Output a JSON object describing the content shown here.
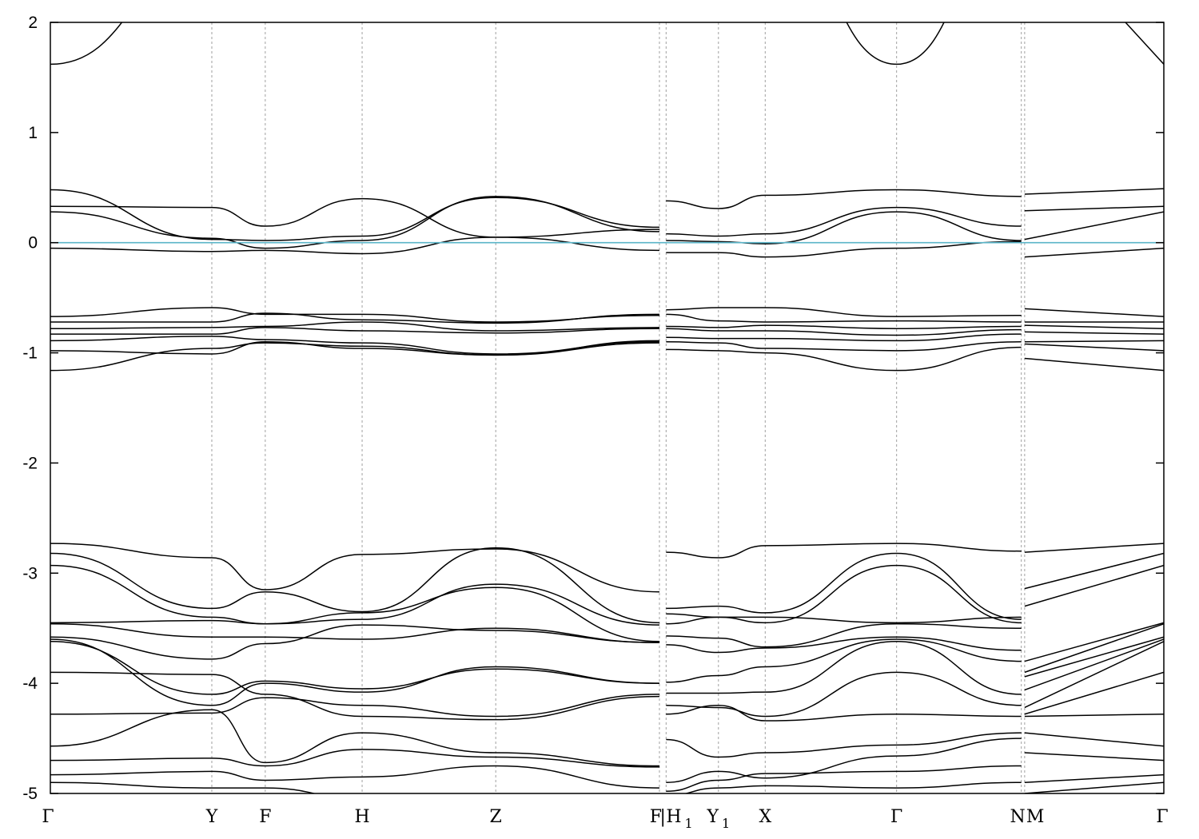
{
  "chart_data": {
    "type": "line",
    "title": "",
    "xlabel": "",
    "ylabel": "",
    "ylim": [
      -5,
      2
    ],
    "xlim": [
      0,
      10
    ],
    "y_ticks": [
      2,
      1,
      0,
      -1,
      -2,
      -3,
      -4,
      -5
    ],
    "grid": "vertical dashed lines at high-symmetry points",
    "fermi_level": 0,
    "fermi_color": "#5ab4c8",
    "band_color": "#000000",
    "kpoints": [
      {
        "label": "Γ",
        "sub": "",
        "x": 0.0
      },
      {
        "label": "Y",
        "sub": "",
        "x": 1.45
      },
      {
        "label": "F",
        "sub": "",
        "x": 1.93
      },
      {
        "label": "H",
        "sub": "",
        "x": 2.8
      },
      {
        "label": "Z",
        "sub": "",
        "x": 4.0
      },
      {
        "label": "F",
        "sub": "",
        "x": 5.47
      },
      {
        "label": "|",
        "sub": "",
        "x": 5.5
      },
      {
        "label": "H",
        "sub": "1",
        "x": 5.53
      },
      {
        "label": "Y",
        "sub": "1",
        "x": 6.0
      },
      {
        "label": "X",
        "sub": "",
        "x": 6.42
      },
      {
        "label": "Γ",
        "sub": "",
        "x": 7.6
      },
      {
        "label": "N",
        "sub": "",
        "x": 8.72
      },
      {
        "label": "M",
        "sub": "",
        "x": 8.75
      },
      {
        "label": "Γ",
        "sub": "",
        "x": 10.0
      }
    ],
    "segments": [
      {
        "name": "Γ-Y-F-H-Z-F",
        "x": [
          0.0,
          1.45,
          1.93,
          2.8,
          4.0,
          5.47
        ],
        "bands": [
          [
            1.62,
            2.6,
            3.0,
            3.0,
            3.0,
            3.0
          ],
          [
            0.48,
            0.03,
            0.02,
            0.06,
            0.41,
            0.14
          ],
          [
            0.33,
            0.32,
            0.15,
            0.4,
            0.05,
            0.12
          ],
          [
            0.28,
            0.04,
            -0.05,
            0.02,
            0.42,
            0.1
          ],
          [
            -0.05,
            -0.08,
            -0.07,
            -0.1,
            0.05,
            -0.07
          ],
          [
            -0.67,
            -0.59,
            -0.65,
            -0.65,
            -0.72,
            -0.66
          ],
          [
            -0.72,
            -0.72,
            -0.64,
            -0.7,
            -0.73,
            -0.65
          ],
          [
            -0.78,
            -0.77,
            -0.76,
            -0.72,
            -0.8,
            -0.77
          ],
          [
            -0.83,
            -0.83,
            -0.77,
            -0.8,
            -0.82,
            -0.78
          ],
          [
            -0.89,
            -0.85,
            -0.88,
            -0.91,
            -1.01,
            -0.9
          ],
          [
            -0.98,
            -1.01,
            -0.9,
            -0.96,
            -1.02,
            -0.89
          ],
          [
            -1.16,
            -0.96,
            -0.91,
            -0.94,
            -1.02,
            -0.91
          ],
          [
            -2.73,
            -2.86,
            -3.15,
            -2.83,
            -2.78,
            -3.17
          ],
          [
            -2.82,
            -3.32,
            -3.17,
            -3.35,
            -2.77,
            -3.45
          ],
          [
            -2.93,
            -3.4,
            -3.46,
            -3.42,
            -3.1,
            -3.47
          ],
          [
            -3.45,
            -3.43,
            -3.46,
            -3.36,
            -3.13,
            -3.62
          ],
          [
            -3.46,
            -3.58,
            -3.58,
            -3.6,
            -3.5,
            -3.63
          ],
          [
            -3.58,
            -3.78,
            -3.64,
            -3.47,
            -3.52,
            -3.63
          ],
          [
            -3.6,
            -4.2,
            -4.0,
            -4.08,
            -3.85,
            -4.0
          ],
          [
            -3.62,
            -4.1,
            -3.98,
            -4.05,
            -3.87,
            -4.0
          ],
          [
            -3.9,
            -3.92,
            -4.1,
            -4.3,
            -4.33,
            -4.12
          ],
          [
            -4.28,
            -4.27,
            -4.13,
            -4.2,
            -4.3,
            -4.1
          ],
          [
            -4.57,
            -4.24,
            -4.72,
            -4.45,
            -4.63,
            -4.75
          ],
          [
            -4.7,
            -4.68,
            -4.75,
            -4.6,
            -4.67,
            -4.76
          ],
          [
            -4.83,
            -4.8,
            -4.88,
            -4.85,
            -4.75,
            -4.95
          ],
          [
            -4.9,
            -4.95,
            -4.95,
            -5.05,
            -5.05,
            -5.05
          ]
        ]
      },
      {
        "name": "H1-Y1-X-Γ-N",
        "x": [
          5.53,
          6.0,
          6.42,
          7.6,
          8.72
        ],
        "bands": [
          [
            3.0,
            3.0,
            3.0,
            1.62,
            3.0
          ],
          [
            0.38,
            0.31,
            0.43,
            0.48,
            0.42
          ],
          [
            0.08,
            0.06,
            0.08,
            0.32,
            0.15
          ],
          [
            0.02,
            0.01,
            -0.01,
            0.28,
            0.02
          ],
          [
            -0.09,
            -0.09,
            -0.13,
            -0.05,
            0.01
          ],
          [
            -0.61,
            -0.59,
            -0.59,
            -0.67,
            -0.66
          ],
          [
            -0.65,
            -0.71,
            -0.72,
            -0.71,
            -0.72
          ],
          [
            -0.76,
            -0.77,
            -0.75,
            -0.78,
            -0.76
          ],
          [
            -0.78,
            -0.8,
            -0.8,
            -0.84,
            -0.79
          ],
          [
            -0.86,
            -0.87,
            -0.87,
            -0.89,
            -0.83
          ],
          [
            -0.9,
            -0.91,
            -0.96,
            -0.98,
            -0.9
          ],
          [
            -0.97,
            -0.98,
            -1.0,
            -1.16,
            -0.95
          ],
          [
            -2.81,
            -2.86,
            -2.75,
            -2.73,
            -2.8
          ],
          [
            -3.32,
            -3.3,
            -3.36,
            -2.82,
            -3.42
          ],
          [
            -3.37,
            -3.4,
            -3.45,
            -2.93,
            -3.45
          ],
          [
            -3.46,
            -3.4,
            -3.4,
            -3.45,
            -3.4
          ],
          [
            -3.57,
            -3.59,
            -3.67,
            -3.46,
            -3.5
          ],
          [
            -3.65,
            -3.72,
            -3.68,
            -3.58,
            -3.7
          ],
          [
            -3.99,
            -3.93,
            -3.85,
            -3.6,
            -3.8
          ],
          [
            -4.09,
            -4.09,
            -4.08,
            -3.62,
            -4.1
          ],
          [
            -4.2,
            -4.22,
            -4.3,
            -3.9,
            -4.2
          ],
          [
            -4.28,
            -4.2,
            -4.34,
            -4.28,
            -4.3
          ],
          [
            -4.51,
            -4.67,
            -4.63,
            -4.56,
            -4.45
          ],
          [
            -4.9,
            -4.8,
            -4.86,
            -4.66,
            -4.5
          ],
          [
            -4.98,
            -4.88,
            -4.82,
            -4.8,
            -4.75
          ],
          [
            -5.02,
            -4.95,
            -4.93,
            -4.95,
            -4.9
          ]
        ]
      },
      {
        "name": "M-Γ",
        "x": [
          8.75,
          10.0
        ],
        "bands": [
          [
            3.0,
            1.62
          ],
          [
            0.44,
            0.49
          ],
          [
            0.29,
            0.33
          ],
          [
            0.03,
            0.28
          ],
          [
            -0.13,
            -0.05
          ],
          [
            -0.6,
            -0.67
          ],
          [
            -0.72,
            -0.72
          ],
          [
            -0.75,
            -0.78
          ],
          [
            -0.81,
            -0.83
          ],
          [
            -0.9,
            -0.89
          ],
          [
            -0.92,
            -0.98
          ],
          [
            -1.05,
            -1.16
          ],
          [
            -2.81,
            -2.73
          ],
          [
            -3.14,
            -2.82
          ],
          [
            -3.3,
            -2.93
          ],
          [
            -3.8,
            -3.45
          ],
          [
            -3.9,
            -3.46
          ],
          [
            -3.94,
            -3.58
          ],
          [
            -4.06,
            -3.6
          ],
          [
            -4.22,
            -3.62
          ],
          [
            -4.28,
            -3.9
          ],
          [
            -4.3,
            -4.28
          ],
          [
            -4.45,
            -4.57
          ],
          [
            -4.63,
            -4.7
          ],
          [
            -4.9,
            -4.83
          ],
          [
            -5.0,
            -4.9
          ]
        ]
      }
    ]
  }
}
